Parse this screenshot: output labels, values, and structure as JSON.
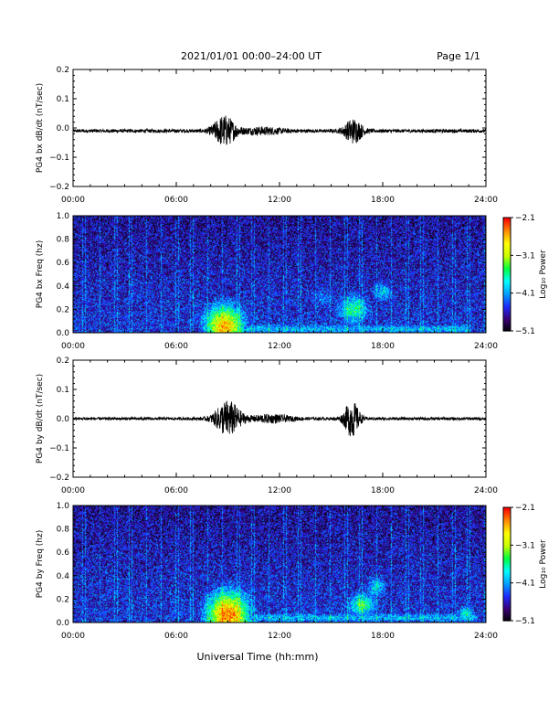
{
  "header": {
    "title": "2021/01/01  00:00–24:00 UT",
    "page": "Page 1/1"
  },
  "x_axis_label": "Universal Time (hh:mm)",
  "colorbar": {
    "label": "Log₁₀ Power",
    "tick_labels": [
      "−2.1",
      "−3.1",
      "−4.1",
      "−5.1"
    ],
    "values": [
      -2.1,
      -3.1,
      -4.1,
      -5.1
    ],
    "range": [
      -5.1,
      -2.1
    ],
    "colormap": [
      "#000000",
      "#3a0074",
      "#1e2bff",
      "#00a0ff",
      "#00ffff",
      "#00ff40",
      "#c8ff00",
      "#ffff00",
      "#ff8c00",
      "#ff0000"
    ]
  },
  "chart_data": [
    {
      "type": "line",
      "ylabel": "PG4 bx dB/dt (nT/sec)",
      "x_tick_labels": [
        "00:00",
        "06:00",
        "12:00",
        "18:00",
        "24:00"
      ],
      "x_ticks_hours": [
        0,
        6,
        12,
        18,
        24
      ],
      "xlim": [
        0,
        24
      ],
      "ylim": [
        -0.2,
        0.2
      ],
      "y_ticks": [
        0.2,
        0.1,
        0.0,
        -0.1,
        -0.2
      ],
      "y_tick_labels": [
        "0.2",
        "0.1",
        "0.0",
        "−0.1",
        "−0.2"
      ],
      "baseline": -0.01,
      "activity_bursts": [
        {
          "center_hour": 8.8,
          "width_hours": 1.6,
          "amplitude": 0.05
        },
        {
          "center_hour": 16.3,
          "width_hours": 1.3,
          "amplitude": 0.04
        },
        {
          "center_hour": 11.0,
          "width_hours": 3.0,
          "amplitude": 0.01
        }
      ],
      "background_noise": 0.006
    },
    {
      "type": "heatmap",
      "ylabel": "PG4 bx Freq (hz)",
      "x_tick_labels": [
        "00:00",
        "06:00",
        "12:00",
        "18:00",
        "24:00"
      ],
      "x_ticks_hours": [
        0,
        6,
        12,
        18,
        24
      ],
      "xlim": [
        0,
        24
      ],
      "ylim": [
        0.0,
        1.0
      ],
      "y_ticks": [
        1.0,
        0.8,
        0.6,
        0.4,
        0.2,
        0.0
      ],
      "y_tick_labels": [
        "1.0",
        "0.8",
        "0.6",
        "0.4",
        "0.2",
        "0.0"
      ],
      "value_range": [
        -5.1,
        -2.1
      ],
      "features": [
        {
          "kind": "blob",
          "center_hour": 8.8,
          "center_freq": 0.05,
          "hour_spread": 1.1,
          "freq_spread": 0.18,
          "peak": -2.6
        },
        {
          "kind": "blob",
          "center_hour": 16.3,
          "center_freq": 0.2,
          "hour_spread": 0.9,
          "freq_spread": 0.12,
          "peak": -3.6
        },
        {
          "kind": "blob",
          "center_hour": 18.0,
          "center_freq": 0.35,
          "hour_spread": 0.6,
          "freq_spread": 0.08,
          "peak": -3.9
        },
        {
          "kind": "blob",
          "center_hour": 14.5,
          "center_freq": 0.3,
          "hour_spread": 0.8,
          "freq_spread": 0.08,
          "peak": -4.2
        },
        {
          "kind": "band",
          "start_hour": 9.0,
          "end_hour": 23.0,
          "freq": 0.03,
          "freq_spread": 0.04,
          "peak": -4.0
        }
      ],
      "background": -4.7
    },
    {
      "type": "line",
      "ylabel": "PG4 by dB/dt (nT/sec)",
      "x_tick_labels": [
        "00:00",
        "06:00",
        "12:00",
        "18:00",
        "24:00"
      ],
      "x_ticks_hours": [
        0,
        6,
        12,
        18,
        24
      ],
      "xlim": [
        0,
        24
      ],
      "ylim": [
        -0.2,
        0.2
      ],
      "y_ticks": [
        0.2,
        0.1,
        0.0,
        -0.1,
        -0.2
      ],
      "y_tick_labels": [
        "0.2",
        "0.1",
        "0.0",
        "−0.1",
        "−0.2"
      ],
      "baseline": 0.0,
      "activity_bursts": [
        {
          "center_hour": 9.0,
          "width_hours": 1.8,
          "amplitude": 0.06
        },
        {
          "center_hour": 16.2,
          "width_hours": 1.1,
          "amplitude": 0.06
        },
        {
          "center_hour": 11.5,
          "width_hours": 3.0,
          "amplitude": 0.012
        }
      ],
      "background_noise": 0.005
    },
    {
      "type": "heatmap",
      "ylabel": "PG4 by Freq (hz)",
      "x_tick_labels": [
        "00:00",
        "06:00",
        "12:00",
        "18:00",
        "24:00"
      ],
      "x_ticks_hours": [
        0,
        6,
        12,
        18,
        24
      ],
      "xlim": [
        0,
        24
      ],
      "ylim": [
        0.0,
        1.0
      ],
      "y_ticks": [
        1.0,
        0.8,
        0.6,
        0.4,
        0.2,
        0.0
      ],
      "y_tick_labels": [
        "1.0",
        "0.8",
        "0.6",
        "0.4",
        "0.2",
        "0.0"
      ],
      "value_range": [
        -5.1,
        -2.1
      ],
      "features": [
        {
          "kind": "blob",
          "center_hour": 9.0,
          "center_freq": 0.06,
          "hour_spread": 1.2,
          "freq_spread": 0.2,
          "peak": -2.4
        },
        {
          "kind": "blob",
          "center_hour": 16.8,
          "center_freq": 0.15,
          "hour_spread": 0.8,
          "freq_spread": 0.1,
          "peak": -3.5
        },
        {
          "kind": "blob",
          "center_hour": 17.6,
          "center_freq": 0.3,
          "hour_spread": 0.6,
          "freq_spread": 0.1,
          "peak": -3.9
        },
        {
          "kind": "blob",
          "center_hour": 22.8,
          "center_freq": 0.08,
          "hour_spread": 0.5,
          "freq_spread": 0.06,
          "peak": -3.8
        },
        {
          "kind": "band",
          "start_hour": 10.0,
          "end_hour": 23.5,
          "freq": 0.04,
          "freq_spread": 0.04,
          "peak": -4.0
        }
      ],
      "background": -4.7
    }
  ]
}
